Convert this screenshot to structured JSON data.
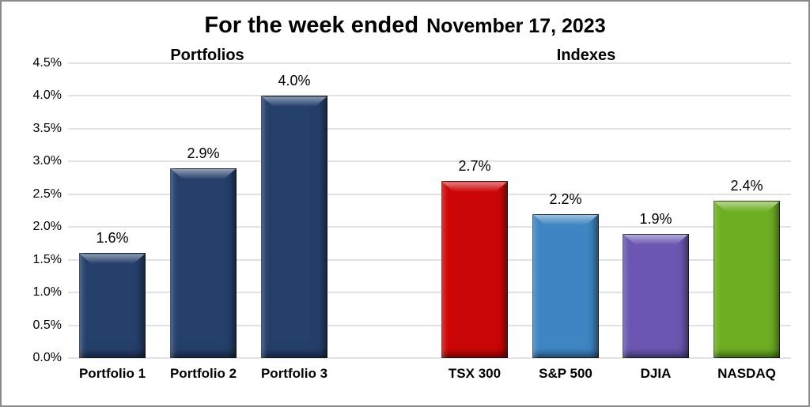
{
  "frame": {
    "title_part1": "For the week ended",
    "title_part2": "November 17, 2023"
  },
  "sections": {
    "left": "Portfolios",
    "right": "Indexes"
  },
  "chart_data": {
    "type": "bar",
    "title": "For the week ended November 17, 2023",
    "categories": [
      "Portfolio 1",
      "Portfolio 2",
      "Portfolio 3",
      "TSX 300",
      "S&P 500",
      "DJIA",
      "NASDAQ"
    ],
    "values": [
      1.6,
      2.9,
      4.0,
      2.7,
      2.2,
      1.9,
      2.4
    ],
    "data_labels": [
      "1.6%",
      "2.9%",
      "4.0%",
      "2.7%",
      "2.2%",
      "1.9%",
      "2.4%"
    ],
    "bar_colors": [
      "#253F6B",
      "#253F6B",
      "#253F6B",
      "#CB0606",
      "#3E85C2",
      "#6B57B1",
      "#6EAE23"
    ],
    "groups": [
      {
        "label": "Portfolios",
        "categories": [
          "Portfolio 1",
          "Portfolio 2",
          "Portfolio 3"
        ]
      },
      {
        "label": "Indexes",
        "categories": [
          "TSX 300",
          "S&P 500",
          "DJIA",
          "NASDAQ"
        ]
      }
    ],
    "xlabel": "",
    "ylabel": "",
    "ylim": [
      0,
      4.5
    ],
    "ytick_step": 0.5,
    "ytick_labels": [
      "0.0%",
      "0.5%",
      "1.0%",
      "1.5%",
      "2.0%",
      "2.5%",
      "3.0%",
      "3.5%",
      "4.0%",
      "4.5%"
    ],
    "grid": true,
    "legend": "none",
    "gridline_color": "#E2E2E2",
    "text_color": "#000000",
    "background_color": "#FFFFFF",
    "border_color": "#8A8A8A"
  }
}
